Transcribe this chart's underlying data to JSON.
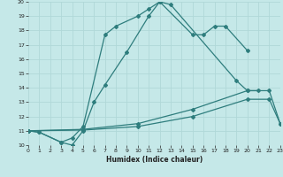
{
  "xlabel": "Humidex (Indice chaleur)",
  "bg_color": "#c5e8e8",
  "grid_color": "#b0d8d8",
  "line_color": "#2e7d7d",
  "x_min": 0,
  "x_max": 23,
  "y_min": 10,
  "y_max": 20,
  "series_exact": [
    {
      "x": [
        0,
        1,
        3,
        4,
        5,
        7,
        8,
        10,
        11,
        12,
        15,
        16,
        17,
        18,
        20
      ],
      "y": [
        11,
        10.9,
        10.2,
        10.5,
        11.3,
        17.7,
        18.3,
        19.0,
        19.5,
        20.0,
        17.7,
        17.7,
        18.3,
        18.3,
        16.6
      ]
    },
    {
      "x": [
        0,
        1,
        3,
        4,
        5,
        6,
        7,
        9,
        11,
        12,
        13,
        19,
        20,
        21
      ],
      "y": [
        11,
        10.9,
        10.2,
        10.0,
        11.0,
        13.0,
        14.2,
        16.5,
        19.0,
        20.0,
        19.8,
        14.5,
        13.8,
        13.8
      ]
    },
    {
      "x": [
        0,
        5,
        10,
        15,
        20,
        22,
        23
      ],
      "y": [
        11,
        11.1,
        11.5,
        12.5,
        13.8,
        13.8,
        11.5
      ]
    },
    {
      "x": [
        0,
        5,
        10,
        15,
        20,
        22,
        23
      ],
      "y": [
        11,
        11.05,
        11.3,
        12.0,
        13.2,
        13.2,
        11.5
      ]
    }
  ]
}
